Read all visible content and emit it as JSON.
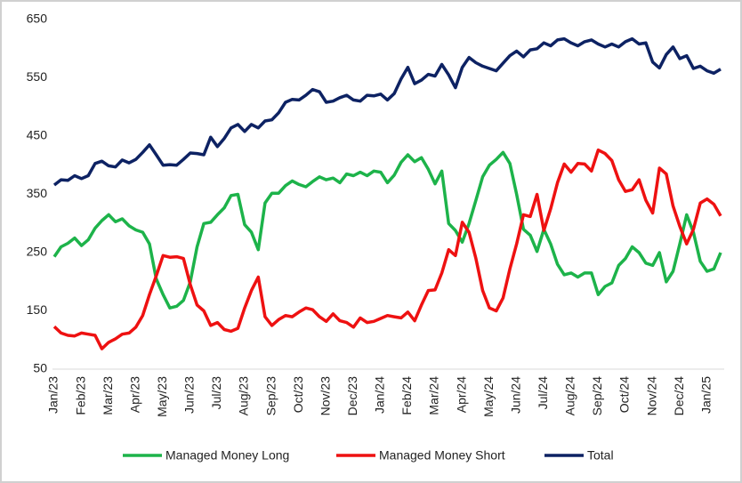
{
  "chart_data": {
    "type": "line",
    "categories": [
      "Jan/23",
      null,
      null,
      null,
      "Feb/23",
      null,
      null,
      null,
      "Mar/23",
      null,
      null,
      null,
      "Apr/23",
      null,
      null,
      null,
      "May/23",
      null,
      null,
      null,
      "Jun/23",
      null,
      null,
      null,
      "Jul/23",
      null,
      null,
      null,
      "Aug/23",
      null,
      null,
      null,
      "Sep/23",
      null,
      null,
      null,
      "Oct/23",
      null,
      null,
      null,
      "Nov/23",
      null,
      null,
      null,
      "Dec/23",
      null,
      null,
      null,
      "Jan/24",
      null,
      null,
      null,
      "Feb/24",
      null,
      null,
      null,
      "Mar/24",
      null,
      null,
      null,
      "Apr/24",
      null,
      null,
      null,
      "May/24",
      null,
      null,
      null,
      "Jun/24",
      null,
      null,
      null,
      "Jul/24",
      null,
      null,
      null,
      "Aug/24",
      null,
      null,
      null,
      "Sep/24",
      null,
      null,
      null,
      "Oct/24",
      null,
      null,
      null,
      "Nov/24",
      null,
      null,
      null,
      "Dec/24",
      null,
      null,
      null,
      "Jan/25",
      null,
      null
    ],
    "series": [
      {
        "name": "Managed Money Long",
        "color": "#1db34a",
        "values": [
          243,
          260,
          266,
          275,
          262,
          272,
          292,
          305,
          315,
          303,
          308,
          296,
          289,
          285,
          265,
          205,
          178,
          155,
          158,
          168,
          200,
          260,
          300,
          302,
          315,
          327,
          348,
          350,
          298,
          285,
          255,
          335,
          352,
          352,
          365,
          373,
          367,
          363,
          372,
          380,
          375,
          378,
          370,
          385,
          382,
          388,
          382,
          390,
          388,
          370,
          383,
          405,
          418,
          406,
          413,
          393,
          368,
          390,
          300,
          288,
          268,
          300,
          340,
          380,
          400,
          410,
          422,
          403,
          350,
          290,
          280,
          252,
          290,
          265,
          230,
          212,
          215,
          208,
          215,
          215,
          178,
          192,
          198,
          228,
          240,
          260,
          250,
          232,
          228,
          250,
          200,
          218,
          265,
          315,
          285,
          235,
          218,
          222,
          250
        ]
      },
      {
        "name": "Managed Money Short",
        "color": "#ee1111",
        "values": [
          123,
          112,
          108,
          107,
          112,
          110,
          108,
          85,
          96,
          102,
          110,
          112,
          122,
          142,
          178,
          210,
          245,
          242,
          243,
          240,
          195,
          160,
          150,
          125,
          130,
          118,
          115,
          120,
          155,
          185,
          208,
          140,
          125,
          135,
          142,
          140,
          148,
          155,
          152,
          140,
          132,
          145,
          133,
          130,
          122,
          138,
          130,
          132,
          137,
          142,
          140,
          138,
          148,
          133,
          160,
          185,
          186,
          215,
          255,
          245,
          302,
          285,
          240,
          185,
          155,
          150,
          172,
          222,
          265,
          315,
          312,
          350,
          288,
          325,
          370,
          402,
          388,
          403,
          402,
          390,
          426,
          420,
          408,
          375,
          355,
          358,
          375,
          340,
          318,
          395,
          385,
          330,
          295,
          265,
          290,
          335,
          342,
          333,
          313
        ]
      },
      {
        "name": "Total",
        "color": "#0d2263",
        "values": [
          366,
          375,
          374,
          382,
          377,
          382,
          403,
          407,
          399,
          397,
          409,
          404,
          410,
          422,
          435,
          418,
          400,
          401,
          400,
          410,
          421,
          420,
          418,
          448,
          432,
          446,
          464,
          470,
          458,
          470,
          464,
          476,
          478,
          490,
          508,
          513,
          512,
          520,
          530,
          526,
          508,
          510,
          516,
          520,
          512,
          510,
          520,
          519,
          522,
          512,
          523,
          548,
          568,
          540,
          546,
          556,
          553,
          573,
          555,
          533,
          568,
          585,
          576,
          570,
          566,
          562,
          575,
          588,
          596,
          586,
          598,
          600,
          610,
          605,
          615,
          617,
          610,
          605,
          612,
          615,
          608,
          603,
          608,
          603,
          612,
          617,
          608,
          610,
          577,
          567,
          590,
          603,
          583,
          588,
          566,
          570,
          562,
          558,
          565
        ]
      }
    ],
    "ylim": [
      50,
      650
    ],
    "yticks": [
      50,
      150,
      250,
      350,
      450,
      550,
      650
    ],
    "grid": false,
    "legend": "bottom"
  }
}
